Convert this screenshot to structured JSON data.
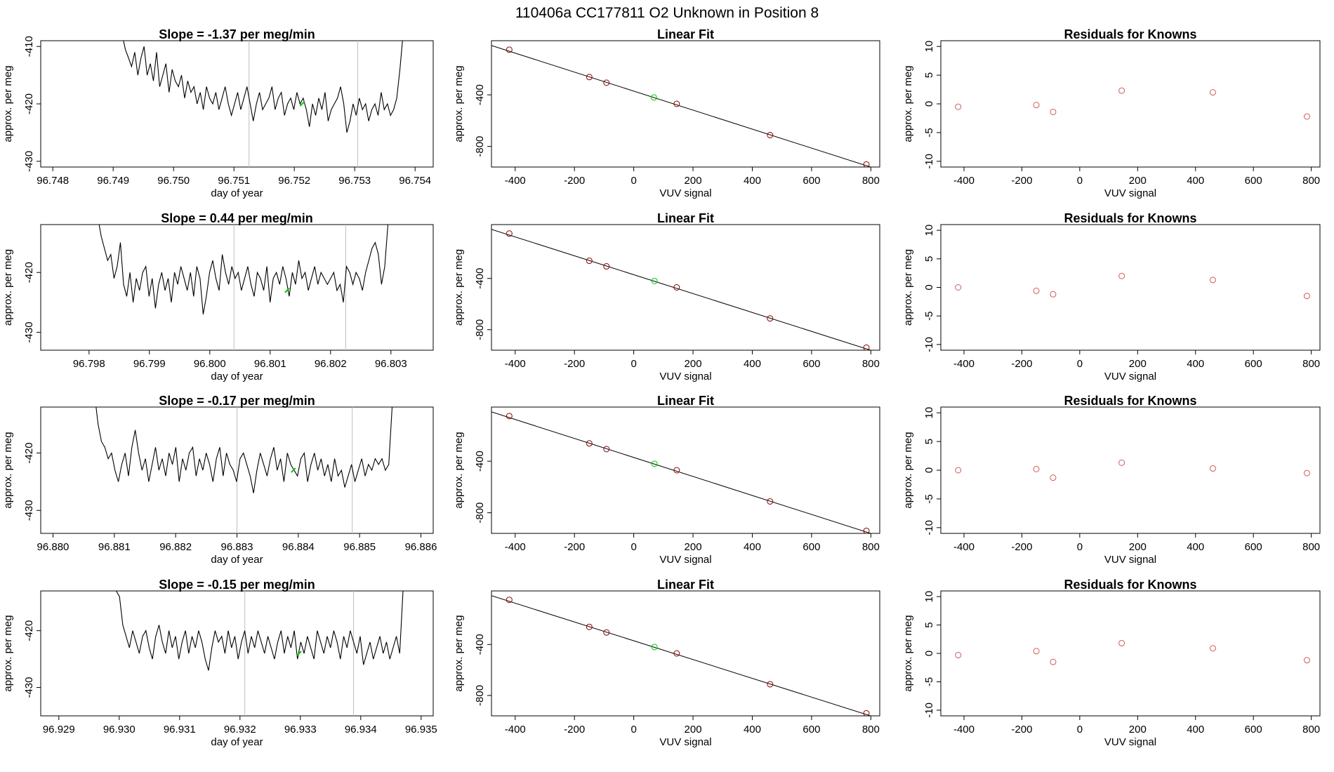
{
  "figure": {
    "main_title": "110406a      CC177811   O2 Unknown in Position  8"
  },
  "colors": {
    "line": "#000000",
    "vline": "#bebebe",
    "known_point": "#8b0000",
    "unknown_point": "#00cc00",
    "residual_point": "#cd5c5c"
  },
  "chart_data": [
    {
      "type": "line",
      "row": 0,
      "col": 0,
      "title": "Slope =  -1.37  per meg/min",
      "xlabel": "day of year",
      "ylabel": "approx. per meg",
      "xlim": [
        96.7478,
        96.7543
      ],
      "ylim": [
        -431,
        -409
      ],
      "xticks": [
        96.748,
        96.749,
        96.75,
        96.751,
        96.752,
        96.753,
        96.754
      ],
      "xtick_labels": [
        "96.748",
        "96.749",
        "96.750",
        "96.751",
        "96.752",
        "96.753",
        "96.754"
      ],
      "yticks": [
        -430,
        -420,
        -410
      ],
      "ytick_labels": [
        "-430",
        "-420",
        "-410"
      ],
      "vlines": [
        96.75125,
        96.75305
      ],
      "x_start": 96.74915,
      "x_end": 96.7538,
      "trace_y": [
        -408,
        -410.5,
        -412,
        -413.5,
        -411,
        -415,
        -412,
        -410,
        -415,
        -413,
        -416,
        -411,
        -417,
        -415,
        -413,
        -418,
        -414,
        -416,
        -417,
        -415,
        -419,
        -416,
        -418,
        -417,
        -420,
        -418,
        -421,
        -417,
        -419,
        -420,
        -418,
        -421,
        -419,
        -417,
        -420,
        -422,
        -420,
        -418,
        -421,
        -419,
        -417,
        -420,
        -423,
        -420,
        -418,
        -421,
        -420,
        -419,
        -417,
        -421,
        -419,
        -418,
        -422,
        -420,
        -419,
        -421,
        -418,
        -420,
        -419,
        -421,
        -424,
        -420,
        -422,
        -419,
        -421,
        -418,
        -423,
        -421,
        -420,
        -419,
        -417,
        -420,
        -425,
        -423,
        -420,
        -422,
        -419,
        -421,
        -420,
        -423,
        -421,
        -420,
        -422,
        -418,
        -421,
        -420,
        -422,
        -421,
        -419
      ],
      "trace_tail": [
        -414,
        -408
      ],
      "marker": {
        "x": 96.75213,
        "y": -420
      }
    },
    {
      "type": "scatter",
      "row": 0,
      "col": 1,
      "title": "Linear Fit",
      "xlabel": "VUV signal",
      "ylabel": "approx. per meg",
      "xlim": [
        -480,
        830
      ],
      "ylim": [
        -960,
        20
      ],
      "xticks": [
        -400,
        -200,
        0,
        200,
        400,
        600,
        800
      ],
      "xtick_labels": [
        "-400",
        "-200",
        "0",
        "200",
        "400",
        "600",
        "800"
      ],
      "yticks": [
        -800,
        -400
      ],
      "ytick_labels": [
        "-800",
        "-400"
      ],
      "points": [
        [
          -420,
          -50
        ],
        [
          -150,
          -262
        ],
        [
          -92,
          -306
        ],
        [
          145,
          -470
        ],
        [
          460,
          -712
        ],
        [
          785,
          -940
        ]
      ],
      "unknown": {
        "x": 68,
        "y": -420
      },
      "fit": {
        "slope": -0.737,
        "intercept": -371
      }
    },
    {
      "type": "scatter",
      "row": 0,
      "col": 2,
      "title": "Residuals for Knowns",
      "xlabel": "VUV signal",
      "ylabel": "approx. per meg",
      "xlim": [
        -480,
        830
      ],
      "ylim": [
        -11,
        11
      ],
      "xticks": [
        -400,
        -200,
        0,
        200,
        400,
        600,
        800
      ],
      "xtick_labels": [
        "-400",
        "-200",
        "0",
        "200",
        "400",
        "600",
        "800"
      ],
      "yticks": [
        -10,
        -5,
        0,
        5,
        10
      ],
      "ytick_labels": [
        "-10",
        "-5",
        "0",
        "5",
        "10"
      ],
      "points": [
        [
          -420,
          -0.5
        ],
        [
          -150,
          -0.2
        ],
        [
          -92,
          -1.4
        ],
        [
          145,
          2.3
        ],
        [
          460,
          2.0
        ],
        [
          785,
          -2.2
        ]
      ]
    },
    {
      "type": "line",
      "row": 1,
      "col": 0,
      "title": "Slope =  0.44  per meg/min",
      "xlabel": "day of year",
      "ylabel": "approx. per meg",
      "xlim": [
        96.7972,
        96.8037
      ],
      "ylim": [
        -433,
        -412
      ],
      "xticks": [
        96.798,
        96.799,
        96.8,
        96.801,
        96.802,
        96.803
      ],
      "xtick_labels": [
        "96.798",
        "96.799",
        "96.800",
        "96.801",
        "96.802",
        "96.803"
      ],
      "yticks": [
        -430,
        -420
      ],
      "ytick_labels": [
        "-430",
        "-420"
      ],
      "vlines": [
        96.8004,
        96.80225
      ],
      "x_start": 96.79815,
      "x_end": 96.80295,
      "trace_y": [
        -411,
        -414,
        -416,
        -418,
        -417,
        -421,
        -419,
        -415,
        -422,
        -424,
        -420,
        -425,
        -421,
        -423,
        -420,
        -419,
        -424,
        -421,
        -426,
        -422,
        -420,
        -423,
        -421,
        -425,
        -420,
        -422,
        -419,
        -421,
        -423,
        -420,
        -424,
        -419,
        -421,
        -427,
        -424,
        -420,
        -418,
        -421,
        -423,
        -417,
        -420,
        -422,
        -419,
        -421,
        -420,
        -423,
        -421,
        -419,
        -422,
        -424,
        -420,
        -421,
        -423,
        -419,
        -425,
        -421,
        -420,
        -422,
        -419,
        -421,
        -424,
        -420,
        -422,
        -418,
        -421,
        -420,
        -423,
        -421,
        -419,
        -422,
        -420,
        -421,
        -422,
        -421,
        -420,
        -423,
        -422,
        -425,
        -419,
        -420,
        -422,
        -420,
        -421,
        -423,
        -420,
        -418,
        -416
      ],
      "trace_tail": [
        -415,
        -417,
        -422,
        -419,
        -412
      ],
      "marker": {
        "x": 96.80128,
        "y": -423
      }
    },
    {
      "type": "scatter",
      "row": 1,
      "col": 1,
      "title": "Linear Fit",
      "xlabel": "VUV signal",
      "ylabel": "approx. per meg",
      "xlim": [
        -480,
        830
      ],
      "ylim": [
        -960,
        20
      ],
      "xticks": [
        -400,
        -200,
        0,
        200,
        400,
        600,
        800
      ],
      "xtick_labels": [
        "-400",
        "-200",
        "0",
        "200",
        "400",
        "600",
        "800"
      ],
      "yticks": [
        -800,
        -400
      ],
      "ytick_labels": [
        "-800",
        "-400"
      ],
      "points": [
        [
          -420,
          -50
        ],
        [
          -150,
          -262
        ],
        [
          -92,
          -306
        ],
        [
          145,
          -470
        ],
        [
          460,
          -712
        ],
        [
          785,
          -940
        ]
      ],
      "unknown": {
        "x": 70,
        "y": -420
      },
      "fit": {
        "slope": -0.737,
        "intercept": -371
      }
    },
    {
      "type": "scatter",
      "row": 1,
      "col": 2,
      "title": "Residuals for Knowns",
      "xlabel": "VUV signal",
      "ylabel": "approx. per meg",
      "xlim": [
        -480,
        830
      ],
      "ylim": [
        -11,
        11
      ],
      "xticks": [
        -400,
        -200,
        0,
        200,
        400,
        600,
        800
      ],
      "xtick_labels": [
        "-400",
        "-200",
        "0",
        "200",
        "400",
        "600",
        "800"
      ],
      "yticks": [
        -10,
        -5,
        0,
        5,
        10
      ],
      "ytick_labels": [
        "-10",
        "-5",
        "0",
        "5",
        "10"
      ],
      "points": [
        [
          -420,
          0.0
        ],
        [
          -150,
          -0.6
        ],
        [
          -92,
          -1.2
        ],
        [
          145,
          2.0
        ],
        [
          460,
          1.3
        ],
        [
          785,
          -1.5
        ]
      ]
    },
    {
      "type": "line",
      "row": 2,
      "col": 0,
      "title": "Slope =  -0.17  per meg/min",
      "xlabel": "day of year",
      "ylabel": "approx. per meg",
      "xlim": [
        96.8798,
        96.8862
      ],
      "ylim": [
        -434,
        -412
      ],
      "xticks": [
        96.88,
        96.881,
        96.882,
        96.883,
        96.884,
        96.885,
        96.886
      ],
      "xtick_labels": [
        "96.880",
        "96.881",
        "96.882",
        "96.883",
        "96.884",
        "96.885",
        "96.886"
      ],
      "yticks": [
        -430,
        -420
      ],
      "ytick_labels": [
        "-430",
        "-420"
      ],
      "vlines": [
        96.883,
        96.88488
      ],
      "x_start": 96.88068,
      "x_end": 96.88553,
      "trace_y": [
        -410,
        -415,
        -418,
        -419,
        -421,
        -420,
        -423,
        -425,
        -422,
        -420,
        -424,
        -419,
        -416,
        -420,
        -423,
        -421,
        -425,
        -422,
        -419,
        -423,
        -421,
        -424,
        -420,
        -422,
        -419,
        -425,
        -421,
        -423,
        -420,
        -419,
        -424,
        -421,
        -423,
        -420,
        -422,
        -425,
        -421,
        -419,
        -424,
        -420,
        -422,
        -423,
        -425,
        -421,
        -420,
        -422,
        -424,
        -427,
        -423,
        -420,
        -422,
        -424,
        -421,
        -419,
        -423,
        -421,
        -425,
        -420,
        -422,
        -423,
        -424,
        -421,
        -420,
        -425,
        -422,
        -420,
        -423,
        -421,
        -424,
        -422,
        -425,
        -421,
        -424,
        -423,
        -426,
        -424,
        -422,
        -425,
        -423,
        -421,
        -424,
        -422,
        -423,
        -421,
        -422,
        -421,
        -423
      ],
      "trace_tail": [
        -422,
        -412
      ],
      "marker": {
        "x": 96.88392,
        "y": -423
      }
    },
    {
      "type": "scatter",
      "row": 2,
      "col": 1,
      "title": "Linear Fit",
      "xlabel": "VUV signal",
      "ylabel": "approx. per meg",
      "xlim": [
        -480,
        830
      ],
      "ylim": [
        -960,
        20
      ],
      "xticks": [
        -400,
        -200,
        0,
        200,
        400,
        600,
        800
      ],
      "xtick_labels": [
        "-400",
        "-200",
        "0",
        "200",
        "400",
        "600",
        "800"
      ],
      "yticks": [
        -800,
        -400
      ],
      "ytick_labels": [
        "-800",
        "-400"
      ],
      "points": [
        [
          -420,
          -50
        ],
        [
          -150,
          -262
        ],
        [
          -92,
          -306
        ],
        [
          145,
          -470
        ],
        [
          460,
          -712
        ],
        [
          785,
          -940
        ]
      ],
      "unknown": {
        "x": 70,
        "y": -420
      },
      "fit": {
        "slope": -0.737,
        "intercept": -371
      }
    },
    {
      "type": "scatter",
      "row": 2,
      "col": 2,
      "title": "Residuals for Knowns",
      "xlabel": "VUV signal",
      "ylabel": "approx. per meg",
      "xlim": [
        -480,
        830
      ],
      "ylim": [
        -11,
        11
      ],
      "xticks": [
        -400,
        -200,
        0,
        200,
        400,
        600,
        800
      ],
      "xtick_labels": [
        "-400",
        "-200",
        "0",
        "200",
        "400",
        "600",
        "800"
      ],
      "yticks": [
        -10,
        -5,
        0,
        5,
        10
      ],
      "ytick_labels": [
        "-10",
        "-5",
        "0",
        "5",
        "10"
      ],
      "points": [
        [
          -420,
          0.0
        ],
        [
          -150,
          0.2
        ],
        [
          -92,
          -1.3
        ],
        [
          145,
          1.3
        ],
        [
          460,
          0.3
        ],
        [
          785,
          -0.5
        ]
      ]
    },
    {
      "type": "line",
      "row": 3,
      "col": 0,
      "title": "Slope =  -0.15  per meg/min",
      "xlabel": "day of year",
      "ylabel": "approx. per meg",
      "xlim": [
        96.9287,
        96.9352
      ],
      "ylim": [
        -435,
        -413
      ],
      "xticks": [
        96.929,
        96.93,
        96.931,
        96.932,
        96.933,
        96.934,
        96.935
      ],
      "xtick_labels": [
        "96.929",
        "96.930",
        "96.931",
        "96.932",
        "96.933",
        "96.934",
        "96.935"
      ],
      "yticks": [
        -430,
        -420
      ],
      "ytick_labels": [
        "-430",
        "-420"
      ],
      "vlines": [
        96.93208,
        96.93388
      ],
      "x_start": 96.92995,
      "x_end": 96.9347,
      "trace_y": [
        -413,
        -414,
        -419,
        -421,
        -423,
        -420,
        -422,
        -424,
        -421,
        -420,
        -423,
        -425,
        -421,
        -419,
        -422,
        -424,
        -420,
        -423,
        -421,
        -425,
        -422,
        -420,
        -424,
        -421,
        -423,
        -420,
        -422,
        -425,
        -427,
        -423,
        -420,
        -422,
        -421,
        -424,
        -420,
        -423,
        -421,
        -425,
        -422,
        -420,
        -424,
        -421,
        -423,
        -420,
        -422,
        -424,
        -421,
        -423,
        -425,
        -422,
        -420,
        -424,
        -421,
        -423,
        -420,
        -425,
        -422,
        -424,
        -421,
        -423,
        -425,
        -420,
        -422,
        -424,
        -421,
        -423,
        -420,
        -422,
        -425,
        -421,
        -423,
        -420,
        -422,
        -424,
        -421,
        -426,
        -424,
        -422,
        -425,
        -423,
        -421,
        -424,
        -422,
        -425,
        -423,
        -421
      ],
      "trace_tail": [
        -424,
        -413
      ],
      "marker": {
        "x": 96.93298,
        "y": -424
      }
    },
    {
      "type": "scatter",
      "row": 3,
      "col": 1,
      "title": "Linear Fit",
      "xlabel": "VUV signal",
      "ylabel": "approx. per meg",
      "xlim": [
        -480,
        830
      ],
      "ylim": [
        -960,
        20
      ],
      "xticks": [
        -400,
        -200,
        0,
        200,
        400,
        600,
        800
      ],
      "xtick_labels": [
        "-400",
        "-200",
        "0",
        "200",
        "400",
        "600",
        "800"
      ],
      "yticks": [
        -800,
        -400
      ],
      "ytick_labels": [
        "-800",
        "-400"
      ],
      "points": [
        [
          -420,
          -50
        ],
        [
          -150,
          -262
        ],
        [
          -92,
          -306
        ],
        [
          145,
          -470
        ],
        [
          460,
          -712
        ],
        [
          785,
          -940
        ]
      ],
      "unknown": {
        "x": 70,
        "y": -420
      },
      "fit": {
        "slope": -0.737,
        "intercept": -371
      }
    },
    {
      "type": "scatter",
      "row": 3,
      "col": 2,
      "title": "Residuals for Knowns",
      "xlabel": "VUV signal",
      "ylabel": "approx. per meg",
      "xlim": [
        -480,
        830
      ],
      "ylim": [
        -11,
        11
      ],
      "xticks": [
        -400,
        -200,
        0,
        200,
        400,
        600,
        800
      ],
      "xtick_labels": [
        "-400",
        "-200",
        "0",
        "200",
        "400",
        "600",
        "800"
      ],
      "yticks": [
        -10,
        -5,
        0,
        5,
        10
      ],
      "ytick_labels": [
        "-10",
        "-5",
        "0",
        "5",
        "10"
      ],
      "points": [
        [
          -420,
          -0.3
        ],
        [
          -150,
          0.4
        ],
        [
          -92,
          -1.5
        ],
        [
          145,
          1.8
        ],
        [
          460,
          0.9
        ],
        [
          785,
          -1.2
        ]
      ]
    }
  ]
}
